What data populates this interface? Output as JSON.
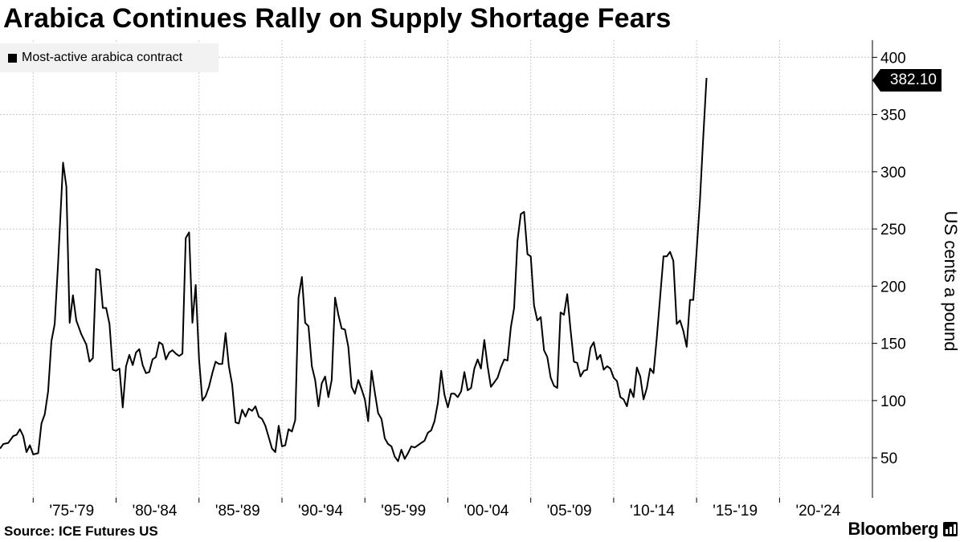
{
  "title": "Arabica Continues Rally on Supply Shortage Fears",
  "source": "Source: ICE Futures US",
  "brand": "Bloomberg",
  "colors": {
    "line": "#000000",
    "grid": "#c8c8c8",
    "legend_bg": "#f2f2f2"
  },
  "chart_data": {
    "type": "line",
    "title": "Arabica Continues Rally on Supply Shortage Fears",
    "ylabel": "US cents a pound",
    "ylim": [
      15,
      415
    ],
    "y_ticks": [
      50,
      100,
      150,
      200,
      250,
      300,
      350,
      400
    ],
    "x_range": [
      1973,
      2025.6
    ],
    "x_ticks": [
      {
        "label": "'75-'79",
        "start": 1975
      },
      {
        "label": "'80-'84",
        "start": 1980
      },
      {
        "label": "'85-'89",
        "start": 1985
      },
      {
        "label": "'90-'94",
        "start": 1990
      },
      {
        "label": "'95-'99",
        "start": 1995
      },
      {
        "label": "'00-'04",
        "start": 2000
      },
      {
        "label": "'05-'09",
        "start": 2005
      },
      {
        "label": "'10-'14",
        "start": 2010
      },
      {
        "label": "'15-'19",
        "start": 2015
      },
      {
        "label": "'20-'24",
        "start": 2020
      }
    ],
    "grid": true,
    "legend_position": "top-left",
    "last_value_label": "382.10",
    "series": [
      {
        "name": "Most-active arabica contract",
        "points": [
          [
            1973.0,
            58
          ],
          [
            1973.2,
            62
          ],
          [
            1973.5,
            63
          ],
          [
            1973.8,
            69
          ],
          [
            1974.0,
            70
          ],
          [
            1974.2,
            75
          ],
          [
            1974.4,
            69
          ],
          [
            1974.6,
            55
          ],
          [
            1974.8,
            61
          ],
          [
            1975.0,
            53
          ],
          [
            1975.3,
            54
          ],
          [
            1975.5,
            80
          ],
          [
            1975.7,
            88
          ],
          [
            1975.9,
            108
          ],
          [
            1976.1,
            152
          ],
          [
            1976.3,
            167
          ],
          [
            1976.5,
            220
          ],
          [
            1976.8,
            308
          ],
          [
            1977.0,
            287
          ],
          [
            1977.2,
            168
          ],
          [
            1977.4,
            192
          ],
          [
            1977.6,
            170
          ],
          [
            1977.9,
            158
          ],
          [
            1978.2,
            149
          ],
          [
            1978.4,
            134
          ],
          [
            1978.6,
            137
          ],
          [
            1978.8,
            215
          ],
          [
            1979.0,
            214
          ],
          [
            1979.2,
            181
          ],
          [
            1979.4,
            181
          ],
          [
            1979.6,
            167
          ],
          [
            1979.8,
            127
          ],
          [
            1980.0,
            126
          ],
          [
            1980.2,
            128
          ],
          [
            1980.4,
            94
          ],
          [
            1980.6,
            130
          ],
          [
            1980.8,
            140
          ],
          [
            1981.0,
            131
          ],
          [
            1981.2,
            142
          ],
          [
            1981.4,
            145
          ],
          [
            1981.6,
            131
          ],
          [
            1981.8,
            124
          ],
          [
            1982.0,
            125
          ],
          [
            1982.2,
            136
          ],
          [
            1982.4,
            138
          ],
          [
            1982.6,
            151
          ],
          [
            1982.8,
            149
          ],
          [
            1983.0,
            136
          ],
          [
            1983.2,
            142
          ],
          [
            1983.4,
            144
          ],
          [
            1983.6,
            141
          ],
          [
            1983.8,
            139
          ],
          [
            1984.0,
            141
          ],
          [
            1984.2,
            242
          ],
          [
            1984.4,
            247
          ],
          [
            1984.6,
            168
          ],
          [
            1984.8,
            201
          ],
          [
            1985.0,
            136
          ],
          [
            1985.2,
            100
          ],
          [
            1985.4,
            104
          ],
          [
            1985.6,
            112
          ],
          [
            1985.8,
            124
          ],
          [
            1986.0,
            134
          ],
          [
            1986.2,
            132
          ],
          [
            1986.4,
            132
          ],
          [
            1986.6,
            159
          ],
          [
            1986.8,
            130
          ],
          [
            1987.0,
            114
          ],
          [
            1987.2,
            81
          ],
          [
            1987.4,
            80
          ],
          [
            1987.6,
            92
          ],
          [
            1987.8,
            86
          ],
          [
            1988.0,
            93
          ],
          [
            1988.2,
            91
          ],
          [
            1988.4,
            95
          ],
          [
            1988.6,
            86
          ],
          [
            1988.8,
            84
          ],
          [
            1989.0,
            78
          ],
          [
            1989.2,
            68
          ],
          [
            1989.4,
            58
          ],
          [
            1989.6,
            55
          ],
          [
            1989.8,
            78
          ],
          [
            1990.0,
            60
          ],
          [
            1990.2,
            61
          ],
          [
            1990.4,
            75
          ],
          [
            1990.6,
            73
          ],
          [
            1990.8,
            83
          ],
          [
            1991.0,
            190
          ],
          [
            1991.2,
            208
          ],
          [
            1991.4,
            168
          ],
          [
            1991.6,
            165
          ],
          [
            1991.8,
            130
          ],
          [
            1992.0,
            118
          ],
          [
            1992.2,
            95
          ],
          [
            1992.4,
            115
          ],
          [
            1992.6,
            121
          ],
          [
            1992.8,
            103
          ],
          [
            1993.0,
            118
          ],
          [
            1993.2,
            190
          ],
          [
            1993.4,
            175
          ],
          [
            1993.6,
            163
          ],
          [
            1993.8,
            162
          ],
          [
            1994.0,
            147
          ],
          [
            1994.2,
            112
          ],
          [
            1994.4,
            106
          ],
          [
            1994.6,
            118
          ],
          [
            1994.8,
            110
          ],
          [
            1995.0,
            101
          ],
          [
            1995.2,
            82
          ],
          [
            1995.4,
            126
          ],
          [
            1995.6,
            107
          ],
          [
            1995.8,
            89
          ],
          [
            1996.0,
            84
          ],
          [
            1996.2,
            67
          ],
          [
            1996.4,
            62
          ],
          [
            1996.6,
            60
          ],
          [
            1996.8,
            51
          ],
          [
            1997.0,
            47
          ],
          [
            1997.2,
            57
          ],
          [
            1997.4,
            49
          ],
          [
            1997.6,
            54
          ],
          [
            1997.8,
            60
          ],
          [
            1998.0,
            59
          ],
          [
            1998.2,
            61
          ],
          [
            1998.4,
            63
          ],
          [
            1998.6,
            65
          ],
          [
            1998.8,
            72
          ],
          [
            1999.0,
            74
          ],
          [
            1999.2,
            82
          ],
          [
            1999.4,
            98
          ],
          [
            1999.6,
            126
          ],
          [
            1999.8,
            105
          ],
          [
            2000.0,
            94
          ],
          [
            2000.2,
            106
          ],
          [
            2000.4,
            106
          ],
          [
            2000.6,
            103
          ],
          [
            2000.8,
            108
          ],
          [
            2001.0,
            125
          ],
          [
            2001.2,
            109
          ],
          [
            2001.4,
            111
          ],
          [
            2001.6,
            128
          ],
          [
            2001.8,
            136
          ],
          [
            2002.0,
            128
          ],
          [
            2002.2,
            153
          ],
          [
            2002.4,
            130
          ],
          [
            2002.6,
            112
          ],
          [
            2002.8,
            116
          ],
          [
            2003.0,
            120
          ],
          [
            2003.2,
            129
          ],
          [
            2003.4,
            136
          ],
          [
            2003.6,
            135
          ],
          [
            2003.8,
            164
          ],
          [
            2004.0,
            181
          ],
          [
            2004.2,
            240
          ],
          [
            2004.4,
            263
          ],
          [
            2004.6,
            265
          ],
          [
            2004.8,
            228
          ],
          [
            2005.0,
            226
          ],
          [
            2005.2,
            183
          ],
          [
            2005.4,
            170
          ],
          [
            2005.6,
            173
          ],
          [
            2005.8,
            144
          ],
          [
            2006.0,
            138
          ],
          [
            2006.2,
            120
          ],
          [
            2006.4,
            113
          ],
          [
            2006.6,
            111
          ],
          [
            2006.8,
            177
          ],
          [
            2007.0,
            175
          ],
          [
            2007.2,
            193
          ],
          [
            2007.4,
            162
          ],
          [
            2007.6,
            134
          ],
          [
            2007.8,
            133
          ],
          [
            2008.0,
            121
          ],
          [
            2008.2,
            126
          ],
          [
            2008.4,
            127
          ],
          [
            2008.6,
            146
          ],
          [
            2008.8,
            151
          ],
          [
            2009.0,
            136
          ],
          [
            2009.2,
            140
          ],
          [
            2009.4,
            127
          ],
          [
            2009.6,
            130
          ],
          [
            2009.8,
            128
          ],
          [
            2010.0,
            120
          ],
          [
            2010.2,
            117
          ],
          [
            2010.4,
            103
          ],
          [
            2010.6,
            101
          ],
          [
            2010.8,
            95
          ],
          [
            2011.0,
            110
          ],
          [
            2011.2,
            103
          ],
          [
            2011.4,
            129
          ],
          [
            2011.6,
            121
          ],
          [
            2011.8,
            101
          ],
          [
            2012.0,
            111
          ],
          [
            2012.2,
            128
          ],
          [
            2012.4,
            124
          ],
          [
            2012.6,
            155
          ],
          [
            2012.8,
            190
          ],
          [
            2013.0,
            226
          ],
          [
            2013.2,
            226
          ],
          [
            2013.4,
            230
          ],
          [
            2013.6,
            222
          ],
          [
            2013.8,
            167
          ],
          [
            2014.0,
            170
          ],
          [
            2014.2,
            161
          ],
          [
            2014.4,
            147
          ],
          [
            2014.6,
            188
          ],
          [
            2014.8,
            188
          ],
          [
            2015.0,
            230
          ],
          [
            2015.2,
            275
          ],
          [
            2015.4,
            330
          ],
          [
            2015.6,
            382
          ]
        ]
      }
    ]
  }
}
